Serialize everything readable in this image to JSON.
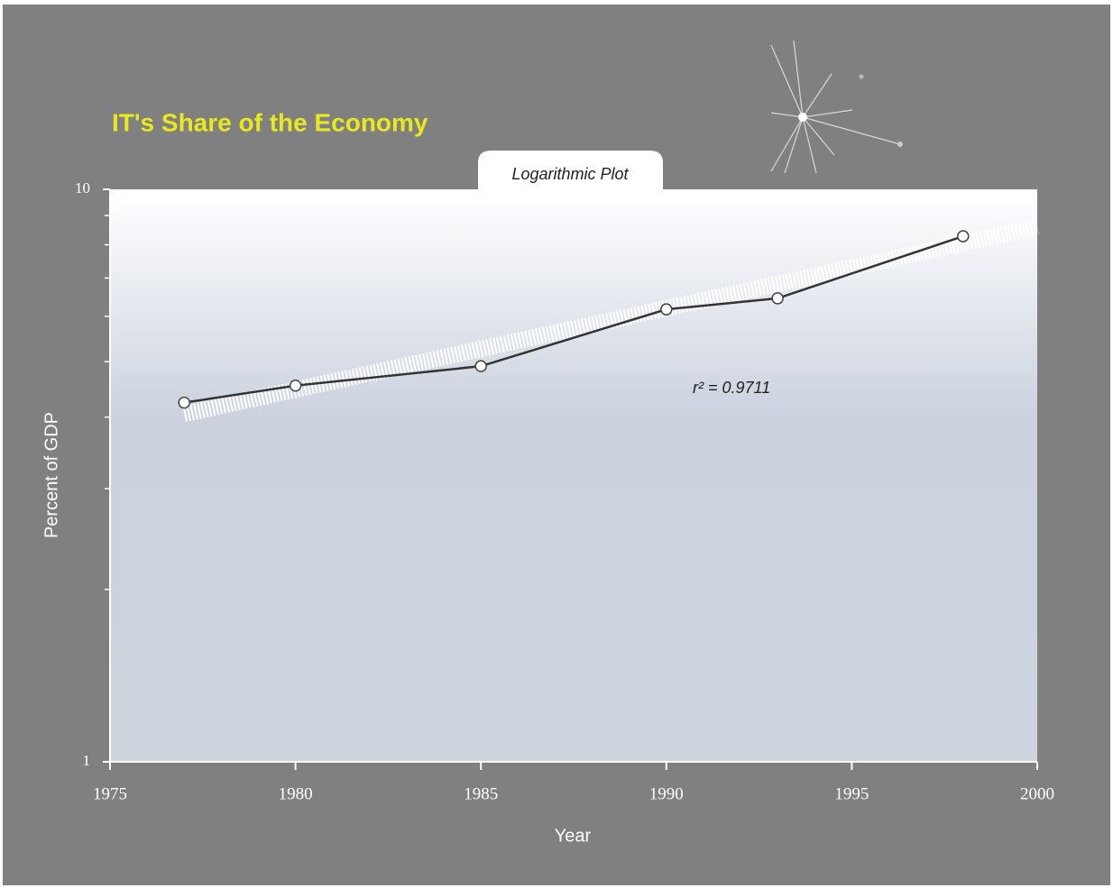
{
  "chart_data": {
    "type": "line",
    "title": "IT's Share of the Economy",
    "subtitle": "Logarithmic Plot",
    "x_label": "Year",
    "y_label": "Percent of GDP",
    "annotation": "r² = 0.9711",
    "x": [
      1977,
      1980,
      1985,
      1990,
      1993,
      1998
    ],
    "series": [
      {
        "color": "#333333",
        "values": [
          4.24,
          4.54,
          4.91,
          6.17,
          6.45,
          8.28
        ]
      }
    ],
    "trend_line": {
      "x": [
        1977,
        2000
      ],
      "values": [
        4.05,
        8.6
      ],
      "color": "#ffffff"
    },
    "xlim": [
      1975,
      2000
    ],
    "xticks": [
      1975,
      1980,
      1985,
      1990,
      1995,
      2000
    ],
    "ylim": [
      1,
      10
    ],
    "yticks": [
      1,
      10
    ],
    "yminor_ticks": [
      2,
      3,
      4,
      5,
      6,
      7,
      8,
      9
    ],
    "log_y": true,
    "grid": false
  }
}
